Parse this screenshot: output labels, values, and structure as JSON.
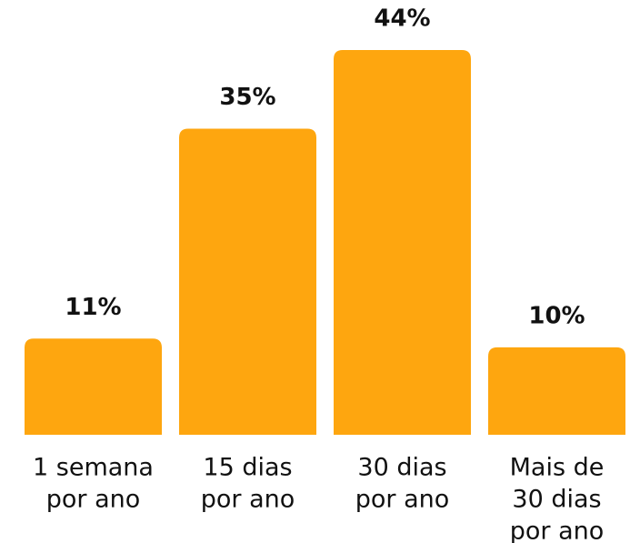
{
  "chart_data": {
    "type": "bar",
    "categories": [
      [
        "1 semana",
        "por ano"
      ],
      [
        "15 dias",
        "por ano"
      ],
      [
        "30 dias",
        "por ano"
      ],
      [
        "Mais de",
        "30 dias",
        "por ano"
      ]
    ],
    "values": [
      11,
      35,
      44,
      10
    ],
    "value_labels": [
      "11%",
      "35%",
      "44%",
      "10%"
    ],
    "color": "#fea60f"
  }
}
